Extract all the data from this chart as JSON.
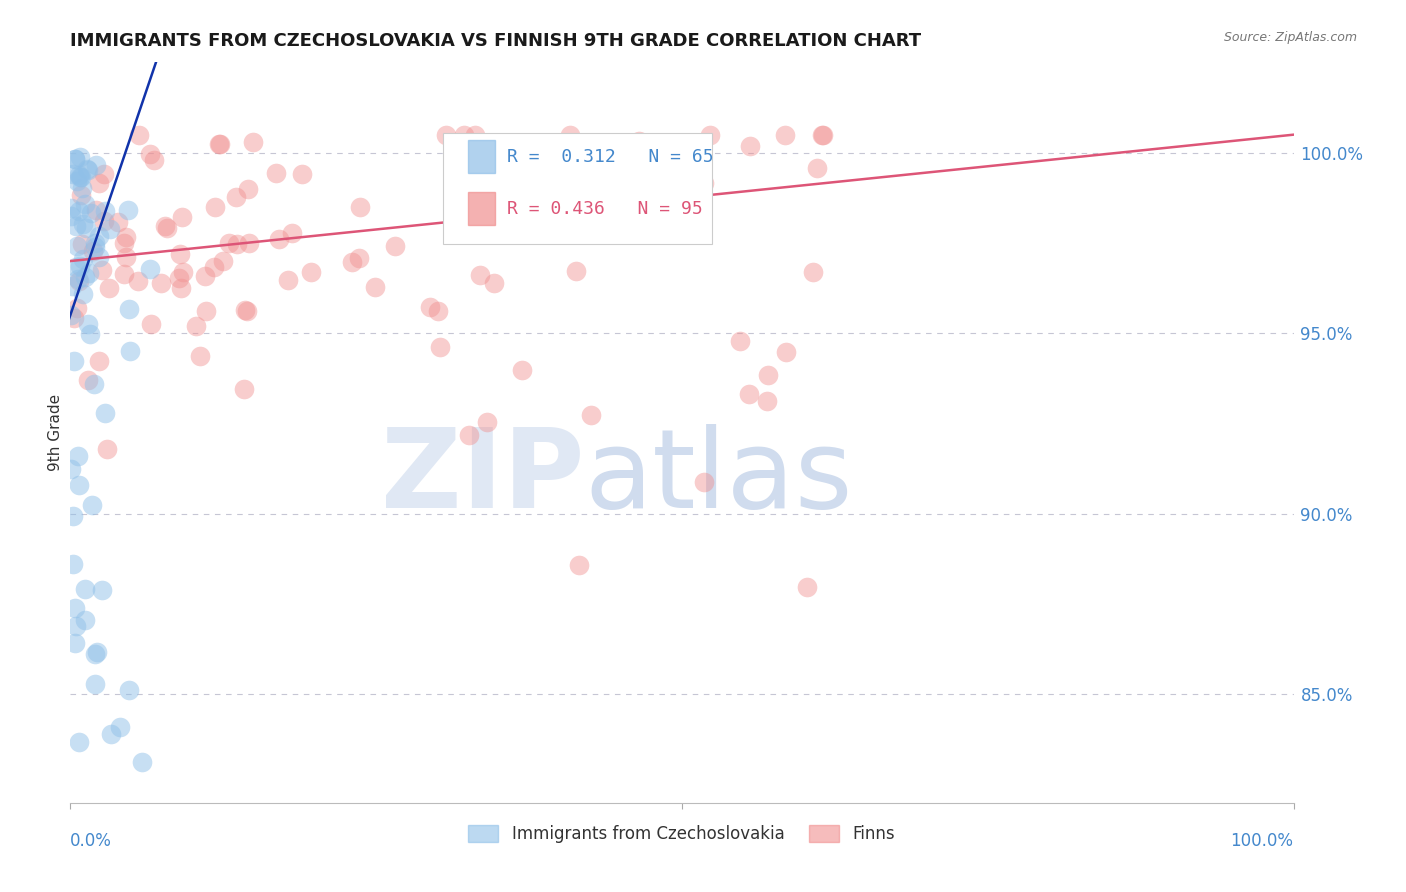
{
  "title": "IMMIGRANTS FROM CZECHOSLOVAKIA VS FINNISH 9TH GRADE CORRELATION CHART",
  "source_text": "Source: ZipAtlas.com",
  "ylabel": "9th Grade",
  "y_ticks": [
    0.85,
    0.9,
    0.95,
    1.0
  ],
  "y_tick_labels": [
    "85.0%",
    "90.0%",
    "95.0%",
    "100.0%"
  ],
  "x_lim": [
    0.0,
    1.0
  ],
  "y_lim": [
    0.82,
    1.025
  ],
  "r_blue": 0.312,
  "n_blue": 65,
  "r_pink": 0.436,
  "n_pink": 95,
  "blue_color": "#90C0E8",
  "pink_color": "#F09090",
  "blue_line_color": "#1133AA",
  "pink_line_color": "#DD5577",
  "title_color": "#1a1a1a",
  "axis_label_color": "#4488CC",
  "grid_color": "#C0C0D0",
  "background_color": "#FFFFFF",
  "blue_line_x0": 0.0,
  "blue_line_y0": 0.955,
  "blue_line_x1": 0.07,
  "blue_line_y1": 1.025,
  "pink_line_x0": 0.0,
  "pink_line_x1": 1.0,
  "pink_line_y0": 0.97,
  "pink_line_y1": 1.005
}
